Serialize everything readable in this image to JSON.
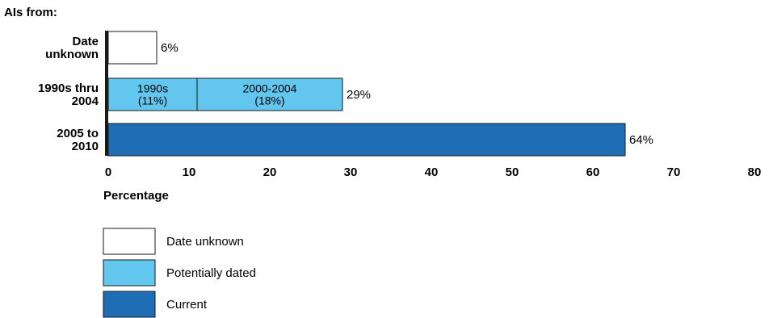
{
  "chart_data": {
    "type": "bar",
    "orientation": "horizontal",
    "stacked": true,
    "subtitle": "AIs from:",
    "xlabel": "Percentage",
    "xlim": [
      0,
      80
    ],
    "xticks": [
      "0",
      "10",
      "20",
      "30",
      "40",
      "50",
      "60",
      "70",
      "80"
    ],
    "grid": false,
    "legend_position": "bottom-left",
    "categories": [
      {
        "lines": [
          "Date",
          "unknown"
        ],
        "total": 6,
        "total_label": "6%"
      },
      {
        "lines": [
          "1990s thru",
          "2004"
        ],
        "total": 29,
        "total_label": "29%"
      },
      {
        "lines": [
          "2005 to",
          "2010"
        ],
        "total": 64,
        "total_label": "64%"
      }
    ],
    "segments": [
      {
        "category": 0,
        "series": 0,
        "value": 6,
        "lines": []
      },
      {
        "category": 1,
        "series": 1,
        "value": 11,
        "lines": [
          "1990s",
          "(11%)"
        ]
      },
      {
        "category": 1,
        "series": 1,
        "value": 18,
        "lines": [
          "2000-2004",
          "(18%)"
        ]
      },
      {
        "category": 2,
        "series": 2,
        "value": 64,
        "lines": []
      }
    ],
    "series": [
      {
        "name": "Date unknown",
        "color": "#ffffff"
      },
      {
        "name": "Potentially dated",
        "color": "#62c6ee"
      },
      {
        "name": "Current",
        "color": "#1f6db5"
      }
    ]
  }
}
